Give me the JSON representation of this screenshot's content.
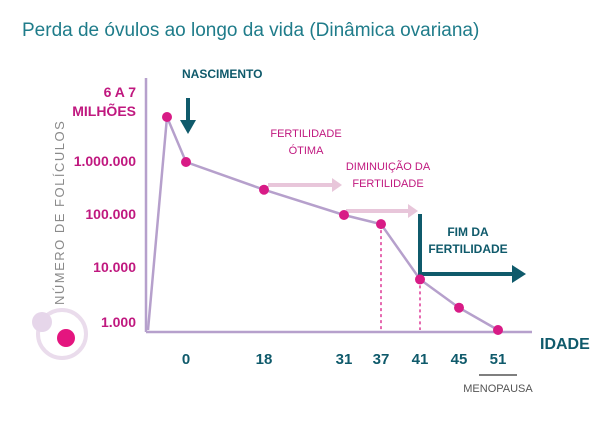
{
  "chart_data": {
    "type": "line",
    "title": "Perda de óvulos ao longo da vida (Dinâmica ovariana)",
    "ylabel": "NÚMERO DE FOLÍCULOS",
    "xlabel": "IDADE",
    "y_ticks": [
      {
        "label_lines": [
          "6 A 7",
          "MILHÕES"
        ]
      },
      {
        "label_lines": [
          "1.000.000"
        ]
      },
      {
        "label_lines": [
          "100.000"
        ]
      },
      {
        "label_lines": [
          "10.000"
        ]
      },
      {
        "label_lines": [
          "1.000"
        ]
      }
    ],
    "x_ticks": [
      "0",
      "18",
      "31",
      "37",
      "41",
      "45",
      "51"
    ],
    "points": [
      {
        "x": -1,
        "y": 6500000
      },
      {
        "x": 0,
        "y": 1000000
      },
      {
        "x": 18,
        "y": 300000
      },
      {
        "x": 31,
        "y": 100000
      },
      {
        "x": 37,
        "y": 70000
      },
      {
        "x": 41,
        "y": 8000
      },
      {
        "x": 45,
        "y": 2500
      },
      {
        "x": 51,
        "y": 1000
      }
    ],
    "annotations": [
      {
        "id": "nascimento",
        "lines": [
          "NASCIMENTO"
        ],
        "arrow": "down",
        "color": "#0f5a6b"
      },
      {
        "id": "fertilidade-otima",
        "lines": [
          "FERTILIDADE",
          "ÓTIMA"
        ],
        "from_x": 18,
        "to_x": 31,
        "color": "#c0187f"
      },
      {
        "id": "diminuicao",
        "lines": [
          "DIMINUIÇÃO DA",
          "FERTILIDADE"
        ],
        "from_x": 31,
        "to_x": 41,
        "color": "#c0187f"
      },
      {
        "id": "fim",
        "lines": [
          "FIM DA",
          "FERTILIDADE"
        ],
        "from_x": 41,
        "to_x": 54,
        "color": "#0f5a6b"
      }
    ],
    "marker": {
      "x": 51,
      "label": "MENOPAUSA"
    },
    "dashed_x": [
      37,
      41
    ],
    "colors": {
      "title": "#1f7c8a",
      "line": "#b6a0cc",
      "point": "#d81b86",
      "pink": "#c0187f",
      "teal": "#0f5a6b",
      "arrow_pink": "#e8c6da"
    },
    "grid": false,
    "legend": "none"
  }
}
